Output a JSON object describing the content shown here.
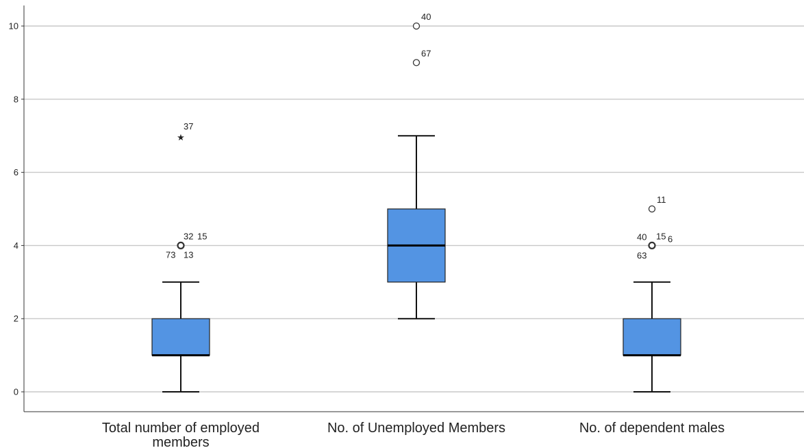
{
  "chart_data": {
    "type": "boxplot",
    "ylim": [
      -0.55,
      10.6
    ],
    "y_ticks": [
      0,
      2,
      4,
      6,
      8,
      10
    ],
    "grid": "horizontal",
    "box_color": "#5394E3",
    "categories": [
      [
        "Total number of employed",
        "members"
      ],
      [
        "No. of Unemployed Members"
      ],
      [
        "No. of dependent males"
      ]
    ],
    "boxes": [
      {
        "whisker_low": 0,
        "q1": 1,
        "median": 1,
        "q3": 2,
        "whisker_high": 3,
        "outliers": [
          {
            "value": 4,
            "symbol": "circle",
            "labels": [
              "32",
              "15",
              "73",
              "13"
            ]
          },
          {
            "value": 7,
            "symbol": "star",
            "labels": [
              "37"
            ]
          }
        ]
      },
      {
        "whisker_low": 2,
        "q1": 3,
        "median": 4,
        "q3": 5,
        "whisker_high": 7,
        "outliers": [
          {
            "value": 9,
            "symbol": "circle",
            "labels": [
              "67"
            ]
          },
          {
            "value": 10,
            "symbol": "circle",
            "labels": [
              "40"
            ]
          }
        ]
      },
      {
        "whisker_low": 0,
        "q1": 1,
        "median": 1,
        "q3": 2,
        "whisker_high": 3,
        "outliers": [
          {
            "value": 4,
            "symbol": "circle",
            "labels": [
              "40",
              "15",
              "6",
              "63"
            ]
          },
          {
            "value": 5,
            "symbol": "circle",
            "labels": [
              "11"
            ]
          }
        ]
      }
    ]
  }
}
